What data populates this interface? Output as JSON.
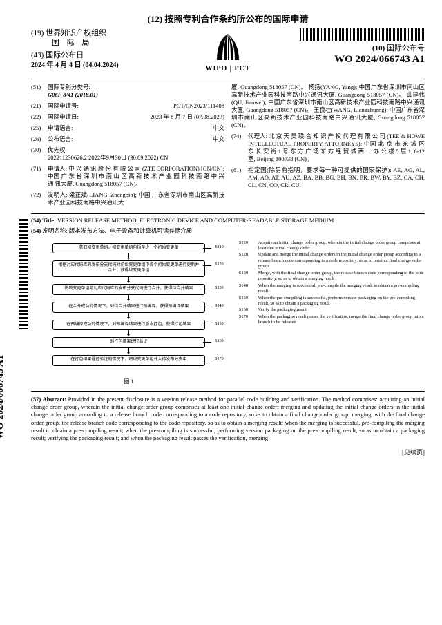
{
  "header": {
    "h12": "(12) 按照专利合作条约所公布的国际申请",
    "h19_prefix": "(19)",
    "h19": "世界知识产权组织",
    "bureau": "国 际 局",
    "h43_prefix": "(43)",
    "h43": "国际公布日",
    "pub_date": "2024 年 4 月 4 日 (04.04.2024)",
    "wipo": "WIPO | PCT",
    "h10_prefix": "(10)",
    "h10": "国际公布号",
    "pubno": "WO 2024/066743 A1"
  },
  "left_col": {
    "f51": {
      "num": "(51)",
      "lbl": "国际专利分类号:",
      "val": "G06F 8/41 (2018.01)"
    },
    "f21": {
      "num": "(21)",
      "lbl": "国际申请号:",
      "val": "PCT/CN2023/111408"
    },
    "f22": {
      "num": "(22)",
      "lbl": "国际申请日:",
      "val": "2023 年 8 月 7 日 (07.08.2023)"
    },
    "f25": {
      "num": "(25)",
      "lbl": "申请语言:",
      "val": "中文"
    },
    "f26": {
      "num": "(26)",
      "lbl": "公布语言:",
      "val": "中文"
    },
    "f30": {
      "num": "(30)",
      "lbl": "优先权:",
      "val": "202211230626.2    2022年9月30日 (30.09.2022)    CN"
    },
    "f71": {
      "num": "(71)",
      "lbl": "申请人:",
      "val": "中 兴 通 讯 股 份 有 限 公 司 (ZTE CORPORATION) [CN/CN]; 中国 广 东 省 深 圳 市 南 山 区 高 新 技 术 产 业 园 科 技 南 路 中 兴 通 讯大厦, Guangdong 518057 (CN)。"
    },
    "f72": {
      "num": "(72)",
      "lbl": "发明人:",
      "val": "梁正斌(LIANG, Zhengbin); 中国 广东省深圳市南山区高新技术产业园科技南路中兴通讯大"
    }
  },
  "right_col": {
    "continued": "厦, Guangdong 518057 (CN)。 杨扬(YANG, Yang); 中国广东省深圳市南山区高新技术产业园科技南路中兴通讯大厦, Guangdong 518057 (CN)。 曲建伟(QU, Jianwei); 中国广东省深圳市南山区高新技术产业园科技南路中兴通讯大厦, Guangdong 518057 (CN)。 王良壮(WANG, Liangzhuang); 中国广东省深圳市南山区高新技术产业园科技南路中兴通讯大厦, Guangdong 518057 (CN)。",
    "f74": {
      "num": "(74)",
      "lbl": "代理人:",
      "val": "北 京 天 昊 联 合 知 识 产 权 代 理 有 限 公 司 (TEE & HOWE INTELLECTUAL PROPERTY ATTORNEYS); 中国 北 京 市 东 城 区 东 长 安 街 1 号 东 方 广 场 东 方 经 贸 城 西 一 办 公 楼 5 层 1, 6-12室, Beijing 100738 (CN)。"
    },
    "f81": {
      "num": "(81)",
      "lbl": "指定国",
      "val": "(除另有指明，要求每一种可提供的国家保护): AE, AG, AL, AM, AO, AT, AU, AZ, BA, BB, BG, BH, BN, BR, BW, BY, BZ, CA, CH, CL, CN, CO, CR, CU,"
    }
  },
  "title54": {
    "num": "(54)",
    "lbl": "Title:",
    "val": "VERSION RELEASE METHOD, ELECTRONIC DEVICE AND COMPUTER-READABLE STORAGE MEDIUM"
  },
  "title54cn": {
    "num": "(54)",
    "lbl": "发明名称:",
    "val": "版本发布方法、电子设备和计算机可读存储介质"
  },
  "flowchart": {
    "caption": "图 1",
    "steps": [
      {
        "s": "S110",
        "txt": "获取初变更单组，初变更单组包括至少一个初始变更单"
      },
      {
        "s": "S120",
        "txt": "根据对应代码库的发布分支代码对初始变更单组中各个初始变更单进行更新并合并，获得终变更单组"
      },
      {
        "s": "S130",
        "txt": "将终变更单组与对应代码库的发布分支代码进行合并，获得待合并结果"
      },
      {
        "s": "S140",
        "txt": "在合并成功的情况下，对待合并结果进行预编译，获得预编译结果"
      },
      {
        "s": "S150",
        "txt": "在预编译成功的情况下，对预编译结果进行版本打包，获得打包结果"
      },
      {
        "s": "S160",
        "txt": "对打包结果进行验证"
      },
      {
        "s": "S170",
        "txt": "在打包结果通过验证的情况下，将终变更单组并入待发布分支中"
      }
    ]
  },
  "legend": [
    {
      "s": "S110",
      "t": "Acquire an initial change order group, wherein the initial change order group comprises at least one initial change order"
    },
    {
      "s": "S120",
      "t": "Update and merge the initial change orders in the initial change order group according to a release branch code corresponding to a code repository, so as to obtain a final change order group"
    },
    {
      "s": "S130",
      "t": "Merge, with the final change order group, the release branch code corresponding to the code repository, so as to obtain a merging result"
    },
    {
      "s": "S140",
      "t": "When the merging is successful, pre-compile the merging result to obtain a pre-compiling result"
    },
    {
      "s": "S150",
      "t": "When the pre-compiling is successful, perform version packaging on the pre-compiling result, so as to obtain a packaging result"
    },
    {
      "s": "S160",
      "t": "Verify the packaging result"
    },
    {
      "s": "S170",
      "t": "When the packaging result passes the verification, merge the final change order group into a branch to be released"
    }
  ],
  "abstract": {
    "num": "(57)",
    "lbl": "Abstract:",
    "val": "Provided in the present disclosure is a version release method for parallel code building and verification. The method comprises: acquiring an initial change order group, wherein the initial change order group comprises at least one initial change order; merging and updating the initial change orders in the initial change order group according to a release branch code corresponding to a code repository, so as to obtain a final change order group; merging, with the final change order group, the release branch code corresponding to the code repository, so as to obtain a merging result; when the merging is successful, pre-compiling the merging result to obtain a pre-compiling result; when the pre-compiling is successful, performing version packaging on the pre-compiling result, so as to obtain a packaging result; verifying the packaging result; and when the packaging result passes the verification, merging"
  },
  "side_text": "WO 2024/066743 A1",
  "footer": "[见续页]"
}
